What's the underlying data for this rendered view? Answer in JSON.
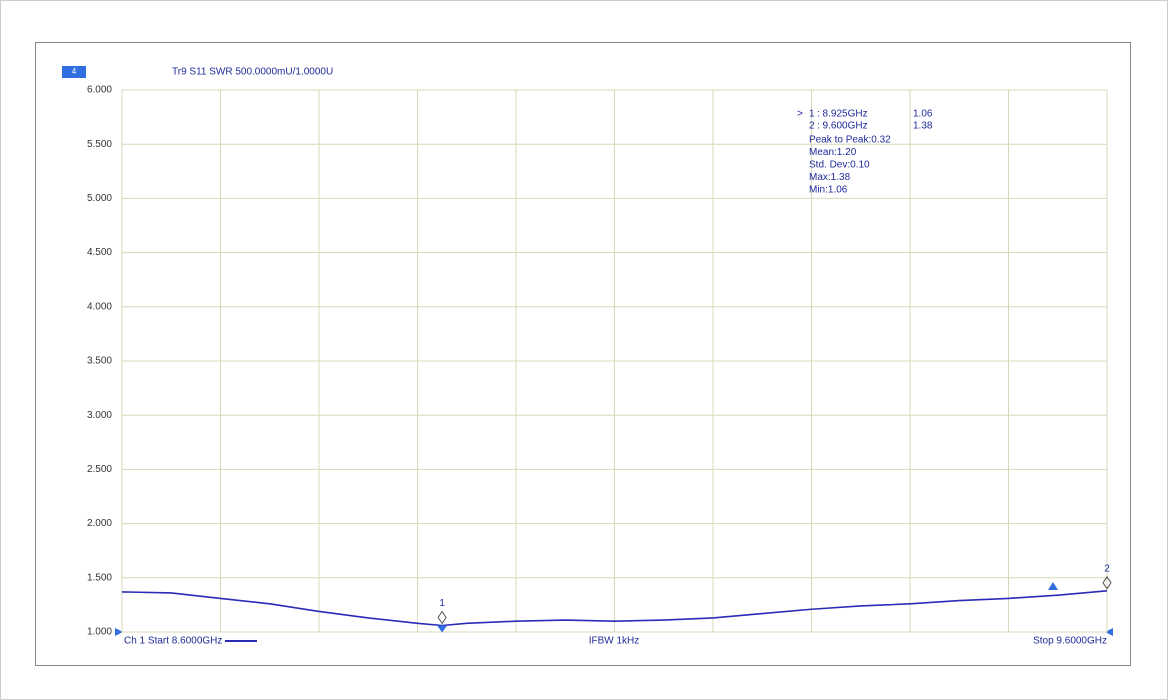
{
  "chart_data": {
    "type": "line",
    "channel_box": "4",
    "title": "Tr9 S11 SWR 500.0000mU/1.0000U",
    "footer_left": "Ch 1 Start 8.6000GHz",
    "footer_center": "IFBW 1kHz",
    "footer_right": "Stop 9.6000GHz",
    "xlim": [
      8.6,
      9.6
    ],
    "ylim": [
      1,
      6
    ],
    "xticks": [
      8.6,
      8.7,
      8.8,
      8.9,
      9.0,
      9.1,
      9.2,
      9.3,
      9.4,
      9.5,
      9.6
    ],
    "yticks": [
      {
        "value": 1,
        "label": "1.000"
      },
      {
        "value": 1.5,
        "label": "1.500"
      },
      {
        "value": 2,
        "label": "2.000"
      },
      {
        "value": 2.5,
        "label": "2.500"
      },
      {
        "value": 3,
        "label": "3.000"
      },
      {
        "value": 3.5,
        "label": "3.500"
      },
      {
        "value": 4,
        "label": "4.000"
      },
      {
        "value": 4.5,
        "label": "4.500"
      },
      {
        "value": 5,
        "label": "5.000"
      },
      {
        "value": 5.5,
        "label": "5.500"
      },
      {
        "value": 6,
        "label": "6.000"
      }
    ],
    "grid": true,
    "x": [
      8.6,
      8.65,
      8.7,
      8.75,
      8.8,
      8.85,
      8.9,
      8.925,
      8.95,
      9.0,
      9.05,
      9.1,
      9.15,
      9.2,
      9.25,
      9.3,
      9.35,
      9.4,
      9.45,
      9.5,
      9.55,
      9.6
    ],
    "series": [
      {
        "color": "#2b2bb8",
        "values": [
          1.37,
          1.36,
          1.31,
          1.26,
          1.19,
          1.13,
          1.08,
          1.06,
          1.08,
          1.1,
          1.11,
          1.1,
          1.11,
          1.13,
          1.17,
          1.21,
          1.24,
          1.26,
          1.29,
          1.31,
          1.34,
          1.38
        ]
      }
    ],
    "pointer": ">",
    "markers": [
      {
        "number": "1",
        "frequency": {
          "value": 8.925,
          "label": ": 8.925GHz"
        },
        "value": 1.06
      },
      {
        "number": "2",
        "frequency": {
          "value": 9.6,
          "label": ": 9.600GHz"
        },
        "value": 1.38
      }
    ],
    "statistics": [
      "Peak to Peak:0.32",
      "Mean:1.20",
      "Std. Dev:0.10",
      "Max:1.38",
      "Min:1.06"
    ]
  }
}
